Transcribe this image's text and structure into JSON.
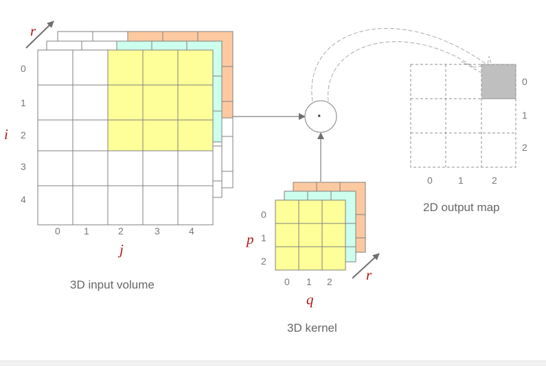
{
  "input_volume": {
    "caption": "3D input volume",
    "row_labels": [
      "0",
      "1",
      "2",
      "3",
      "4"
    ],
    "col_labels": [
      "0",
      "1",
      "2",
      "3",
      "4"
    ],
    "row_var": "i",
    "col_var": "j",
    "depth_var": "r"
  },
  "kernel": {
    "caption": "3D kernel",
    "row_labels": [
      "0",
      "1",
      "2"
    ],
    "col_labels": [
      "0",
      "1",
      "2"
    ],
    "row_var": "p",
    "col_var": "q",
    "depth_var": "r"
  },
  "operator": {
    "symbol": "·"
  },
  "output_map": {
    "caption": "2D output map",
    "row_labels": [
      "0",
      "1",
      "2"
    ],
    "col_labels": [
      "0",
      "1",
      "2"
    ],
    "highlight_cell": {
      "row": 0,
      "col": 2
    }
  },
  "colors": {
    "yellow": "#ffff99",
    "cyan": "#ccffee",
    "orange": "#fdc9a0",
    "grid": "#7f7f7f",
    "highlight": "#bfbfbf",
    "var_red": "#b01414"
  }
}
